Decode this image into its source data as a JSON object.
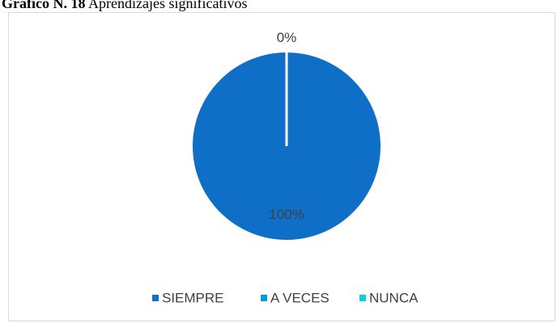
{
  "chart_data": {
    "type": "pie",
    "title_number": "Gráfico N. 18",
    "title": "Aprendizajes significativos",
    "categories": [
      "SIEMPRE",
      "A VECES",
      "NUNCA"
    ],
    "values": [
      100,
      0,
      0
    ],
    "value_labels": [
      "100%",
      "0%",
      null
    ],
    "colors": [
      "#0f6fc6",
      "#009dd9",
      "#0bd0d9"
    ],
    "legend": "bottom"
  }
}
